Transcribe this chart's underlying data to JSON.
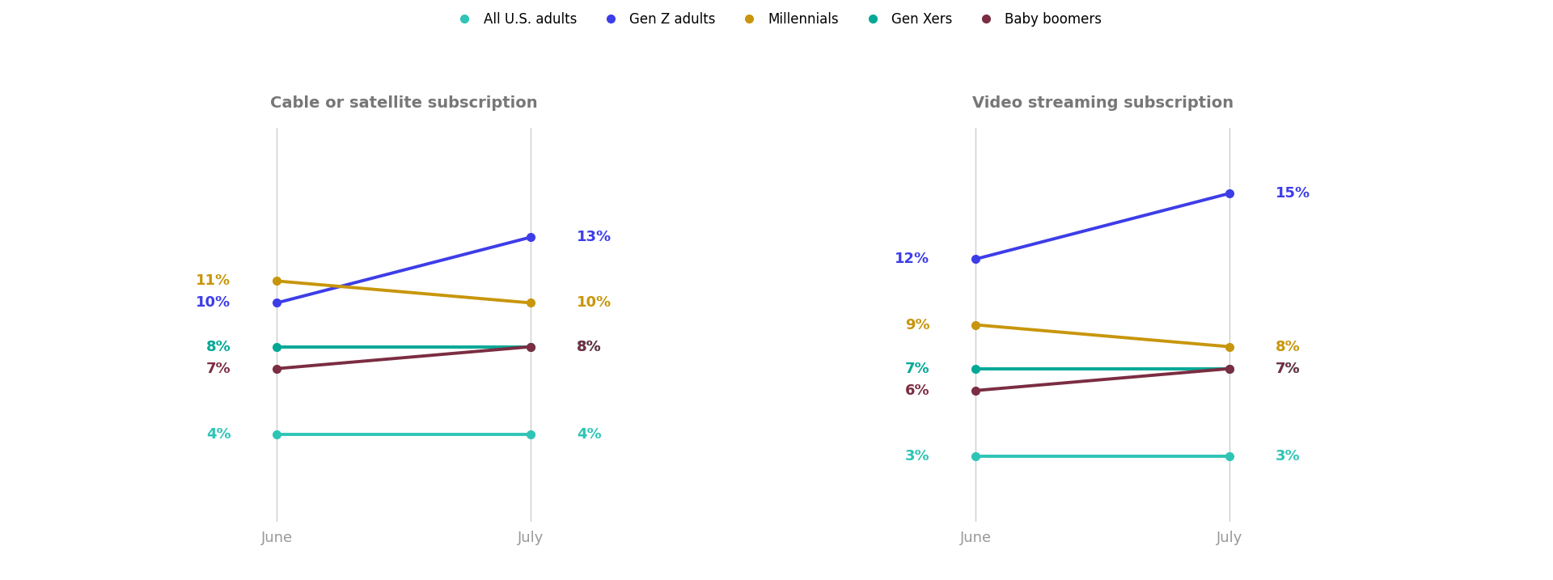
{
  "chart1_title": "Cable or satellite subscription",
  "chart2_title": "Video streaming subscription",
  "x_labels": [
    "June",
    "July"
  ],
  "series": [
    {
      "name": "All U.S. adults",
      "color": "#2ec4b6",
      "chart1": [
        4,
        4
      ],
      "chart2": [
        3,
        3
      ]
    },
    {
      "name": "Gen Z adults",
      "color": "#3d3de8",
      "chart1": [
        10,
        13
      ],
      "chart2": [
        12,
        15
      ]
    },
    {
      "name": "Millennials",
      "color": "#c8960c",
      "chart1": [
        11,
        10
      ],
      "chart2": [
        9,
        8
      ]
    },
    {
      "name": "Gen Xers",
      "color": "#00a896",
      "chart1": [
        8,
        8
      ],
      "chart2": [
        7,
        7
      ]
    },
    {
      "name": "Baby boomers",
      "color": "#7b2d42",
      "chart1": [
        7,
        8
      ],
      "chart2": [
        6,
        7
      ]
    }
  ],
  "line_width": 2.8,
  "marker_size": 7,
  "title_fontsize": 14,
  "annotation_fontsize": 13,
  "tick_fontsize": 13,
  "legend_fontsize": 12,
  "background_color": "#ffffff",
  "title_color": "#777777",
  "tick_color": "#999999",
  "ylim": [
    0,
    18
  ],
  "spine_color": "#cccccc"
}
